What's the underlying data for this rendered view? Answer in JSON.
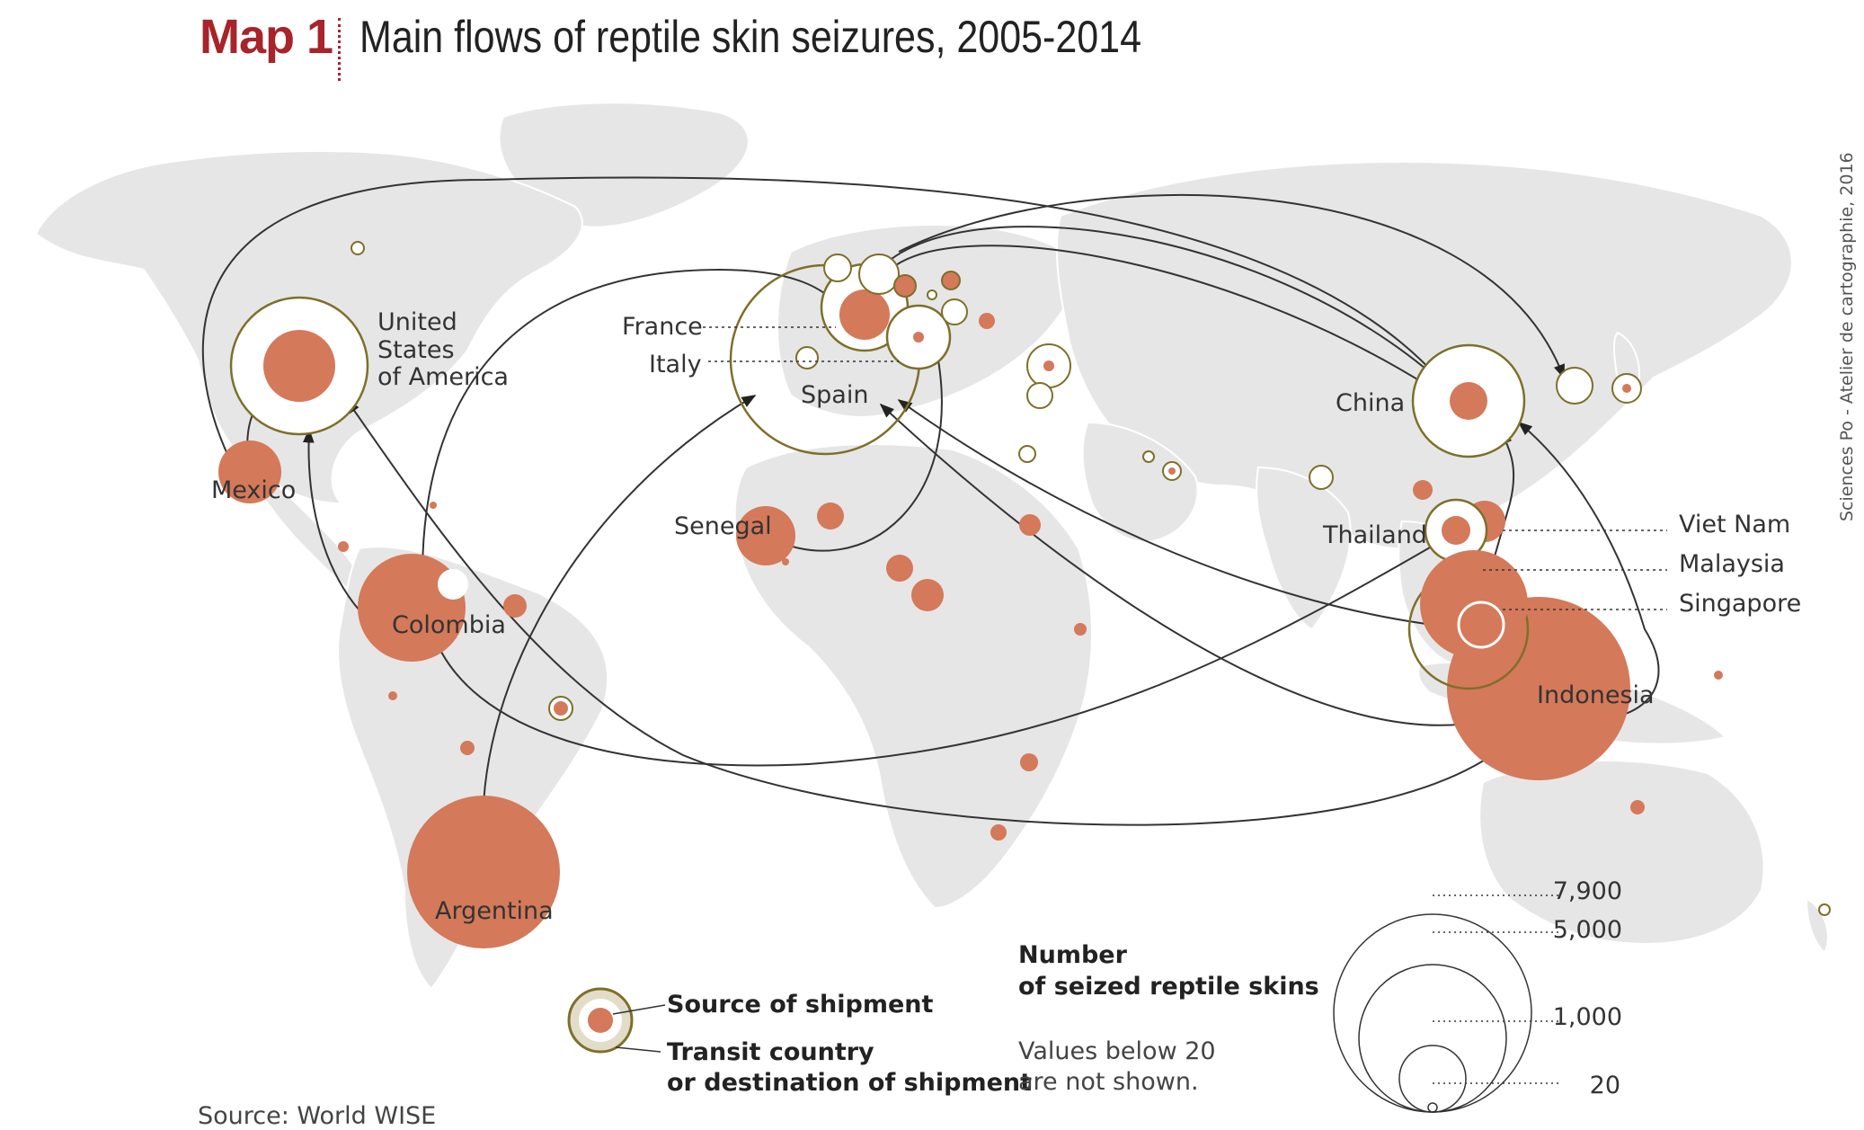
{
  "header": {
    "map_number": "Map 1",
    "title": "Main flows of reptile skin seizures, 2005-2014"
  },
  "credit": "Sciences Po - Atelier de cartographie, 2016",
  "source": "Source: World WISE",
  "colors": {
    "source_fill": "#d4795a",
    "transit_stroke": "#7d6f2a",
    "land": "#e6e6e6",
    "flow_line": "#333333",
    "title_accent": "#a8232a"
  },
  "country_labels": {
    "usa_1": "United",
    "usa_2": "States",
    "usa_3": "of America",
    "mexico": "Mexico",
    "colombia": "Colombia",
    "argentina": "Argentina",
    "france": "France",
    "italy": "Italy",
    "spain": "Spain",
    "senegal": "Senegal",
    "china": "China",
    "thailand": "Thailand",
    "viet_nam": "Viet Nam",
    "malaysia": "Malaysia",
    "singapore": "Singapore",
    "indonesia": "Indonesia"
  },
  "legend": {
    "source_label": "Source of shipment",
    "transit_label_1": "Transit country",
    "transit_label_2": "or destination of shipment",
    "size_title_1": "Number",
    "size_title_2": "of seized reptile skins",
    "note_1": "Values below 20",
    "note_2": "are not shown.",
    "scale": [
      "7,900",
      "5,000",
      "1,000",
      "20"
    ]
  },
  "flows": [
    {
      "from": "Mexico",
      "to": "United States of America"
    },
    {
      "from": "Mexico",
      "to": "China"
    },
    {
      "from": "Colombia",
      "to": "United States of America"
    },
    {
      "from": "Colombia",
      "to": "Europe"
    },
    {
      "from": "Colombia",
      "to": "Thailand"
    },
    {
      "from": "Argentina",
      "to": "Spain"
    },
    {
      "from": "Senegal",
      "to": "Italy"
    },
    {
      "from": "Europe",
      "to": "China"
    },
    {
      "from": "Europe",
      "to": "Japan"
    },
    {
      "from": "Indonesia",
      "to": "China"
    },
    {
      "from": "Indonesia",
      "to": "Spain"
    },
    {
      "from": "Indonesia",
      "to": "United States of America"
    },
    {
      "from": "Malaysia",
      "to": "Spain"
    }
  ]
}
